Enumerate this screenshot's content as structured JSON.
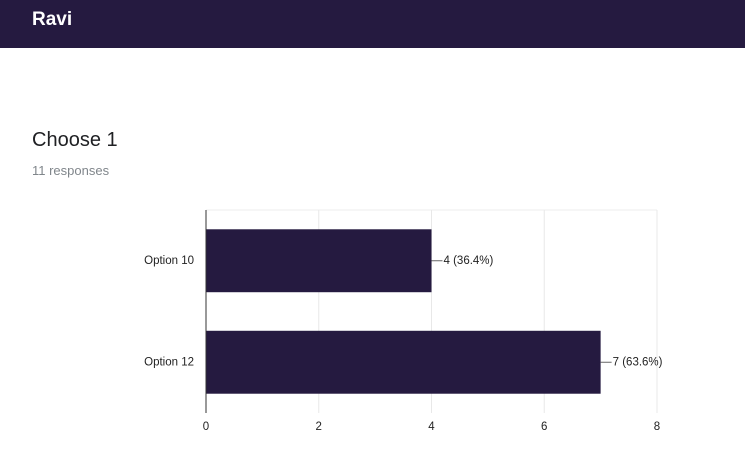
{
  "header": {
    "title": "Ravi"
  },
  "question": {
    "title": "Choose 1",
    "subtitle": "11 responses"
  },
  "chart_data": {
    "type": "bar",
    "orientation": "horizontal",
    "categories": [
      "Option 10",
      "Option 12"
    ],
    "values": [
      4,
      7
    ],
    "value_labels": [
      "4 (36.4%)",
      "7 (63.6%)"
    ],
    "color": "#251a40",
    "xlim": [
      0,
      8
    ],
    "xticks": [
      0,
      2,
      4,
      6,
      8
    ],
    "grid": true
  }
}
